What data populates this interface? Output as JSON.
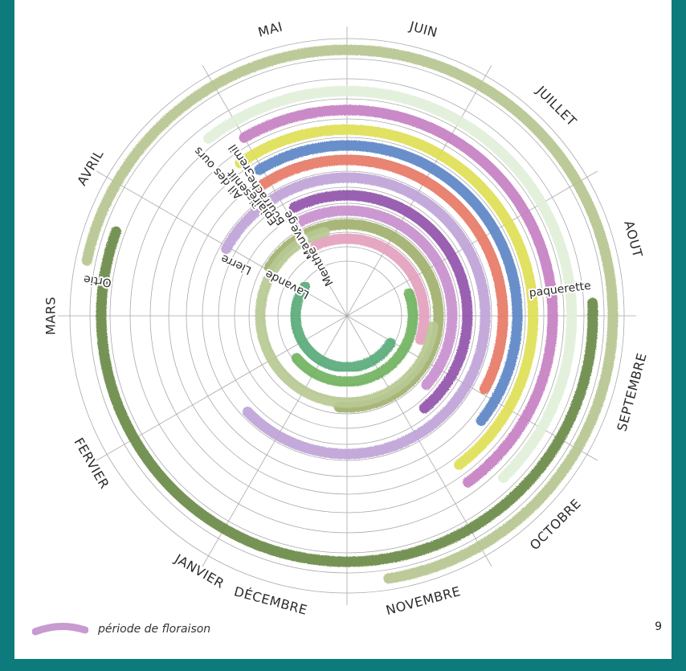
{
  "months": [
    "JANVIER",
    "FERVIER",
    "MARS",
    "AVRIL",
    "MAI",
    "JUIN",
    "JUILLET",
    "AOUT",
    "SEPTEMBRE",
    "OCTOBRE",
    "NOVEMBRE",
    "DÉCEMBRE"
  ],
  "plants": [
    {
      "name": "Ortie",
      "color": "#b6c48f",
      "start_month": 9,
      "end_month": 2
    },
    {
      "name": "paquerette",
      "color": "#6a8a48",
      "start_month": 3,
      "end_month": 2
    },
    {
      "name": "Ail des ours",
      "color": "#e1efd9",
      "start_month": 4,
      "end_month": 6
    },
    {
      "name": "Gremil",
      "color": "#c57fc2",
      "start_month": 4,
      "end_month": 6
    },
    {
      "name": "Pissenlit",
      "color": "#dede55",
      "start_month": 4,
      "end_month": 8
    },
    {
      "name": "Bourrache",
      "color": "#5b86c6",
      "start_month": 5,
      "end_month": 8
    },
    {
      "name": "Epiaire",
      "color": "#e77a66",
      "start_month": 6,
      "end_month": 10
    },
    {
      "name": "Lierre",
      "color": "#bfa3d8",
      "start_month": 5,
      "end_month": 12
    },
    {
      "name": "Sauge",
      "color": "#9153aa",
      "start_month": 6,
      "end_month": 10
    },
    {
      "name": "Mauve",
      "color": "#c88fce",
      "start_month": 6,
      "end_month": 8
    },
    {
      "name": "Lavande",
      "color": "#a1b16d",
      "start_month": 6,
      "end_month": 12
    },
    {
      "name": "Menthe",
      "color": "#e39fbd",
      "start_month": 6,
      "end_month": 8
    },
    {
      "name": "paquerette",
      "color": "#b8c994",
      "start_month": 8,
      "end_month": 2
    },
    {
      "name": "Lierre",
      "color": "#72b35f",
      "start_month": 9,
      "end_month": 12
    },
    {
      "name": "Lavande",
      "color": "#5aab7a",
      "start_month": 9,
      "end_month": 11
    }
  ],
  "legend": {
    "label": "période de floraison",
    "swatch_color": "#c79bcf"
  },
  "page_number": "9"
}
